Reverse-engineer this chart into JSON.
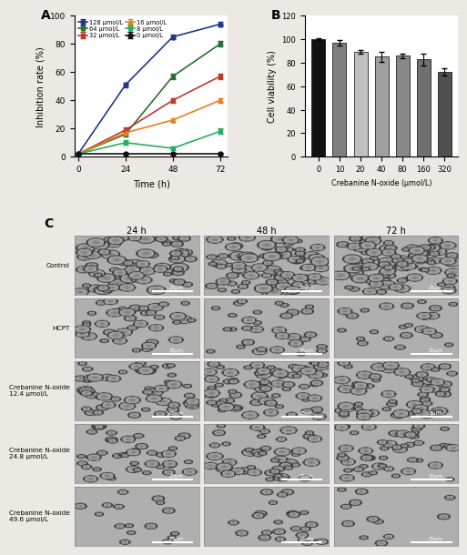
{
  "panel_A": {
    "label": "A",
    "time_points": [
      0,
      24,
      48,
      72
    ],
    "series": [
      {
        "label": "128 μmol/L",
        "color": "#1f3a8a",
        "marker": "o",
        "linestyle": "-",
        "values": [
          2,
          51,
          85,
          94
        ],
        "errors": [
          0,
          1.5,
          1.5,
          1.5
        ]
      },
      {
        "label": "64 μmol/L",
        "color": "#2e6e2e",
        "marker": "s",
        "linestyle": "-",
        "values": [
          2,
          16,
          57,
          80
        ],
        "errors": [
          0,
          1.5,
          2,
          2
        ]
      },
      {
        "label": "32 μmol/L",
        "color": "#c0392b",
        "marker": "s",
        "linestyle": "-",
        "values": [
          2,
          19,
          40,
          57
        ],
        "errors": [
          0,
          1.5,
          1.5,
          2
        ]
      },
      {
        "label": "16 μmol/L",
        "color": "#e67e22",
        "marker": "^",
        "linestyle": "-",
        "values": [
          2,
          17,
          26,
          40
        ],
        "errors": [
          0,
          1.5,
          1.5,
          1.5
        ]
      },
      {
        "label": "8 μmol/L",
        "color": "#27ae60",
        "marker": "s",
        "linestyle": "-",
        "values": [
          2,
          10,
          6,
          18
        ],
        "errors": [
          0,
          1.5,
          1,
          2
        ]
      },
      {
        "label": "0 μmol/L",
        "color": "#111111",
        "marker": "o",
        "linestyle": "-",
        "values": [
          2,
          2,
          2,
          2
        ],
        "errors": [
          0,
          0.5,
          0.5,
          0.5
        ]
      }
    ],
    "xlabel": "Time (h)",
    "ylabel": "Inhibition rate (%)",
    "ylim": [
      0,
      100
    ],
    "xlim": [
      -2,
      76
    ],
    "xticks": [
      0,
      24,
      48,
      72
    ]
  },
  "panel_B": {
    "label": "B",
    "categories": [
      "0",
      "10",
      "20",
      "40",
      "80",
      "160",
      "320"
    ],
    "values": [
      100,
      97,
      89,
      85,
      86,
      83,
      72
    ],
    "errors": [
      0.5,
      2,
      1.5,
      4,
      2,
      5,
      3
    ],
    "bar_colors": [
      "#111111",
      "#7f7f7f",
      "#c0c0c0",
      "#a0a0a0",
      "#888888",
      "#707070",
      "#505050"
    ],
    "xlabel": "Crebanine N-oxide (μmol/L)",
    "ylabel": "Cell viability (%)",
    "ylim": [
      0,
      120
    ],
    "yticks": [
      0,
      20,
      40,
      60,
      80,
      100,
      120
    ]
  },
  "panel_C": {
    "label": "C",
    "col_labels": [
      "24 h",
      "48 h",
      "72 h"
    ],
    "row_labels": [
      "Control",
      "HCPT",
      "Crebanine N-oxide\n12.4 μmol/L",
      "Crebanine N-oxide\n24.8 μmol/L",
      "Crebanine N-oxide\n49.6 μmol/L"
    ],
    "scale_bar_text": "25μm"
  },
  "figure_bg": "#ece9e4",
  "cell_params": [
    [
      [
        0.9,
        7
      ],
      [
        1.0,
        7
      ],
      [
        1.1,
        7
      ]
    ],
    [
      [
        0.5,
        6
      ],
      [
        0.4,
        5
      ],
      [
        0.3,
        5
      ]
    ],
    [
      [
        0.7,
        6
      ],
      [
        0.9,
        6
      ],
      [
        0.85,
        6
      ]
    ],
    [
      [
        0.5,
        5
      ],
      [
        0.6,
        6
      ],
      [
        0.6,
        5
      ]
    ],
    [
      [
        0.2,
        4
      ],
      [
        0.3,
        4
      ],
      [
        0.15,
        4
      ]
    ]
  ]
}
